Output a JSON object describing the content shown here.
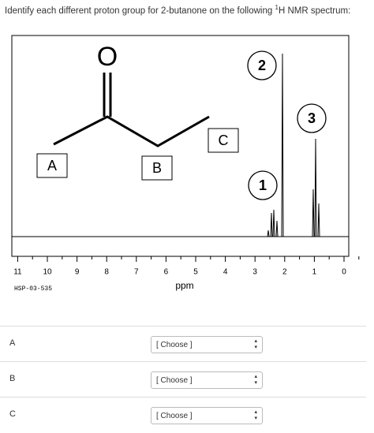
{
  "question": {
    "before": "Identify each different proton group for 2-butanone on the following",
    "superscript": "1",
    "after": "H NMR spectrum:"
  },
  "spectrum": {
    "structure": {
      "oxygen": "O",
      "boxes": [
        "A",
        "B",
        "C"
      ]
    },
    "peak_circles": [
      "2",
      "3",
      "1"
    ],
    "axis_ticks": [
      11,
      10,
      9,
      8,
      7,
      6,
      5,
      4,
      3,
      2,
      1,
      0
    ],
    "axis_label": "ppm",
    "code": "HSP-03-535"
  },
  "answers": [
    {
      "label": "A",
      "select": "[ Choose ]"
    },
    {
      "label": "B",
      "select": "[ Choose ]"
    },
    {
      "label": "C",
      "select": "[ Choose ]"
    }
  ]
}
